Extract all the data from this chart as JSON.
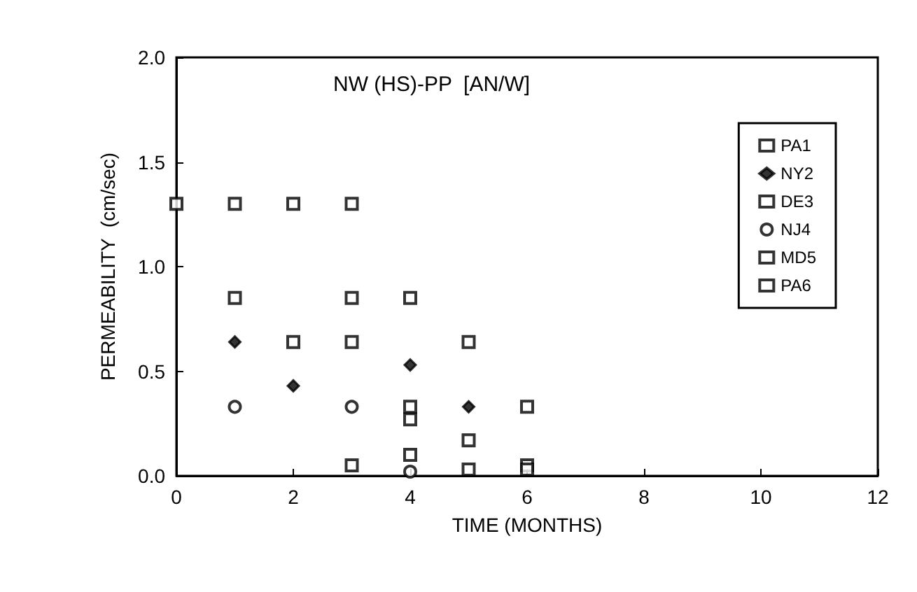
{
  "chart_data": {
    "type": "scatter",
    "title": "NW (HS)-PP  [AN/W]",
    "xlabel": "TIME (MONTHS)",
    "ylabel": "PERMEABILITY  (cm/sec)",
    "xlim": [
      0,
      12
    ],
    "xticks": [
      0,
      2,
      4,
      6,
      8,
      10,
      12
    ],
    "ylim": [
      0,
      2
    ],
    "yticks": [
      {
        "value": 0,
        "label": "0.0"
      },
      {
        "value": 0.5,
        "label": "0.5"
      },
      {
        "value": 1,
        "label": "1.0"
      },
      {
        "value": 1.5,
        "label": "1.5"
      },
      {
        "value": 2,
        "label": "2.0"
      }
    ],
    "grid": false,
    "legend": "top right",
    "series": [
      {
        "name": "PA1",
        "color": "#000000",
        "marker": "square",
        "x": [
          0,
          1,
          2,
          3,
          4,
          5,
          6
        ],
        "values": [
          1.3,
          1.3,
          1.3,
          1.3,
          0.85,
          0.64,
          0.33
        ]
      },
      {
        "name": "NY2",
        "color": "#000000",
        "marker": "diamond",
        "x": [
          1,
          2,
          4,
          5
        ],
        "values": [
          0.64,
          0.43,
          0.53,
          0.33
        ]
      },
      {
        "name": "DE3",
        "color": "#000000",
        "marker": "square",
        "x": [
          2,
          3,
          4
        ],
        "values": [
          0.64,
          0.64,
          0.27
        ]
      },
      {
        "name": "NJ4",
        "color": "#000000",
        "marker": "circle",
        "x": [
          1,
          3,
          4
        ],
        "values": [
          0.33,
          0.33,
          0.02
        ]
      },
      {
        "name": "MD5",
        "color": "#000000",
        "marker": "square",
        "x": [
          1,
          3,
          4,
          5,
          6
        ],
        "values": [
          0.85,
          0.85,
          0.33,
          0.17,
          0.05
        ]
      },
      {
        "name": "PA6",
        "color": "#000000",
        "marker": "square",
        "x": [
          3,
          4,
          5,
          6
        ],
        "values": [
          0.05,
          0.1,
          0.03,
          0.03
        ]
      }
    ]
  }
}
